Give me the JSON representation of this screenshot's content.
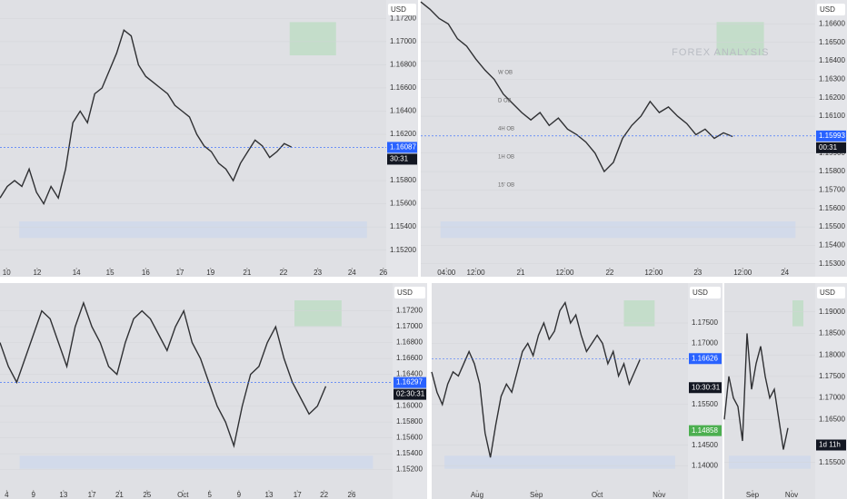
{
  "chart_data": [
    {
      "type": "line",
      "currency": "USD",
      "color": "#2f3033",
      "values": [
        1.1565,
        1.1575,
        1.158,
        1.1575,
        1.159,
        1.157,
        1.156,
        1.1575,
        1.1565,
        1.159,
        1.163,
        1.164,
        1.163,
        1.1655,
        1.166,
        1.1675,
        1.169,
        1.171,
        1.1705,
        1.168,
        1.167,
        1.1665,
        1.166,
        1.1655,
        1.1645,
        1.164,
        1.1635,
        1.162,
        1.161,
        1.1605,
        1.1595,
        1.159,
        1.158,
        1.1595,
        1.1605,
        1.1615,
        1.161,
        1.16,
        1.1605,
        1.1612,
        1.1609
      ],
      "xlim": [
        0,
        53
      ],
      "xticks": [
        {
          "value": 0.9,
          "label": "10"
        },
        {
          "value": 5.1,
          "label": "12"
        },
        {
          "value": 10.5,
          "label": "14"
        },
        {
          "value": 15.1,
          "label": "15"
        },
        {
          "value": 20,
          "label": "16"
        },
        {
          "value": 24.7,
          "label": "17"
        },
        {
          "value": 28.9,
          "label": "19"
        },
        {
          "value": 33.9,
          "label": "21"
        },
        {
          "value": 38.9,
          "label": "22"
        },
        {
          "value": 43.6,
          "label": "23"
        },
        {
          "value": 48.3,
          "label": "24"
        },
        {
          "value": 52.6,
          "label": "26"
        }
      ],
      "ylim": [
        1.1497,
        1.1736
      ],
      "yticks": [
        {
          "value": 1.172,
          "label": "1.17200"
        },
        {
          "value": 1.17,
          "label": "1.17000"
        },
        {
          "value": 1.168,
          "label": "1.16800"
        },
        {
          "value": 1.166,
          "label": "1.16600"
        },
        {
          "value": 1.164,
          "label": "1.16400"
        },
        {
          "value": 1.162,
          "label": "1.16200"
        },
        {
          "value": 1.158,
          "label": "1.15800"
        },
        {
          "value": 1.156,
          "label": "1.15600"
        },
        {
          "value": 1.154,
          "label": "1.15400"
        },
        {
          "value": 1.152,
          "label": "1.15200"
        }
      ],
      "last_price": 1.16087,
      "last_price_color": "#2962ff",
      "countdown": "30:31"
    },
    {
      "type": "line",
      "currency": "USD",
      "color": "#2f3033",
      "values": [
        1.1672,
        1.1668,
        1.1663,
        1.166,
        1.1652,
        1.1648,
        1.1641,
        1.1635,
        1.163,
        1.1622,
        1.1617,
        1.1612,
        1.1608,
        1.1612,
        1.1605,
        1.1609,
        1.1603,
        1.16,
        1.1596,
        1.159,
        1.158,
        1.1585,
        1.1598,
        1.1605,
        1.161,
        1.1618,
        1.1612,
        1.1615,
        1.161,
        1.1606,
        1.16,
        1.1603,
        1.1598,
        1.1601,
        1.1599
      ],
      "xlim": [
        0,
        43
      ],
      "xticks": [
        {
          "value": 2.8,
          "label": "04:00"
        },
        {
          "value": 6,
          "label": "12:00"
        },
        {
          "value": 10.9,
          "label": "21"
        },
        {
          "value": 15.7,
          "label": "12:00"
        },
        {
          "value": 20.6,
          "label": "22"
        },
        {
          "value": 25.4,
          "label": "12:00"
        },
        {
          "value": 30.2,
          "label": "23"
        },
        {
          "value": 35.1,
          "label": "12:00"
        },
        {
          "value": 39.7,
          "label": "24"
        }
      ],
      "ylim": [
        1.1523,
        1.1673
      ],
      "yticks": [
        {
          "value": 1.166,
          "label": "1.16600"
        },
        {
          "value": 1.165,
          "label": "1.16500"
        },
        {
          "value": 1.164,
          "label": "1.16400"
        },
        {
          "value": 1.163,
          "label": "1.16300"
        },
        {
          "value": 1.162,
          "label": "1.16200"
        },
        {
          "value": 1.161,
          "label": "1.16100"
        },
        {
          "value": 1.159,
          "label": "1.15900"
        },
        {
          "value": 1.158,
          "label": "1.15800"
        },
        {
          "value": 1.157,
          "label": "1.15700"
        },
        {
          "value": 1.156,
          "label": "1.15600"
        },
        {
          "value": 1.155,
          "label": "1.15500"
        },
        {
          "value": 1.154,
          "label": "1.15400"
        },
        {
          "value": 1.153,
          "label": "1.15300"
        }
      ],
      "last_price": 1.15993,
      "last_price_color": "#2962ff",
      "countdown": "00:31",
      "watermark": "FOREX ANALYSIS",
      "zone_labels": [
        "W OB",
        "D OB",
        "4H OB",
        "1H OB",
        "15' OB"
      ]
    },
    {
      "type": "line",
      "currency": "USD",
      "color": "#2f3033",
      "values": [
        1.168,
        1.165,
        1.163,
        1.166,
        1.169,
        1.172,
        1.171,
        1.168,
        1.165,
        1.17,
        1.173,
        1.17,
        1.168,
        1.165,
        1.164,
        1.168,
        1.171,
        1.172,
        1.171,
        1.169,
        1.167,
        1.17,
        1.172,
        1.168,
        1.166,
        1.163,
        1.16,
        1.158,
        1.155,
        1.16,
        1.164,
        1.165,
        1.168,
        1.17,
        1.166,
        1.163,
        1.161,
        1.159,
        1.16,
        1.1625
      ],
      "xlim": [
        0,
        47
      ],
      "xticks": [
        {
          "value": 0.8,
          "label": "4"
        },
        {
          "value": 4,
          "label": "9"
        },
        {
          "value": 7.6,
          "label": "13"
        },
        {
          "value": 11,
          "label": "17"
        },
        {
          "value": 14.3,
          "label": "21"
        },
        {
          "value": 17.6,
          "label": "25"
        },
        {
          "value": 21.9,
          "label": "Oct"
        },
        {
          "value": 25.1,
          "label": "5"
        },
        {
          "value": 28.6,
          "label": "9"
        },
        {
          "value": 32.2,
          "label": "13"
        },
        {
          "value": 35.6,
          "label": "17"
        },
        {
          "value": 38.8,
          "label": "22"
        },
        {
          "value": 42.1,
          "label": "26"
        }
      ],
      "ylim": [
        1.1483,
        1.1755
      ],
      "yticks": [
        {
          "value": 1.172,
          "label": "1.17200"
        },
        {
          "value": 1.17,
          "label": "1.17000"
        },
        {
          "value": 1.168,
          "label": "1.16800"
        },
        {
          "value": 1.166,
          "label": "1.16600"
        },
        {
          "value": 1.164,
          "label": "1.16400"
        },
        {
          "value": 1.16,
          "label": "1.16000"
        },
        {
          "value": 1.158,
          "label": "1.15800"
        },
        {
          "value": 1.156,
          "label": "1.15600"
        },
        {
          "value": 1.154,
          "label": "1.15400"
        },
        {
          "value": 1.152,
          "label": "1.15200"
        }
      ],
      "last_price": 1.16297,
      "last_price_color": "#2962ff",
      "countdown": "02:30:31"
    },
    {
      "type": "line",
      "currency": "USD",
      "color": "#2f3033",
      "values": [
        1.163,
        1.158,
        1.155,
        1.16,
        1.163,
        1.162,
        1.165,
        1.168,
        1.165,
        1.16,
        1.148,
        1.142,
        1.15,
        1.157,
        1.16,
        1.158,
        1.163,
        1.168,
        1.17,
        1.167,
        1.172,
        1.175,
        1.171,
        1.173,
        1.178,
        1.18,
        1.175,
        1.177,
        1.172,
        1.168,
        1.17,
        1.172,
        1.17,
        1.165,
        1.168,
        1.162,
        1.165,
        1.16,
        1.163,
        1.166
      ],
      "xlim": [
        0,
        48
      ],
      "xticks": [
        {
          "value": 8.5,
          "label": "Aug"
        },
        {
          "value": 19.6,
          "label": "Sep"
        },
        {
          "value": 31,
          "label": "Oct"
        },
        {
          "value": 42.6,
          "label": "Nov"
        }
      ],
      "ylim": [
        1.1318,
        1.1848
      ],
      "yticks": [
        {
          "value": 1.175,
          "label": "1.17500"
        },
        {
          "value": 1.17,
          "label": "1.17000"
        },
        {
          "value": 1.155,
          "label": "1.15500"
        },
        {
          "value": 1.145,
          "label": "1.14500"
        },
        {
          "value": 1.14,
          "label": "1.14000"
        }
      ],
      "last_price": 1.16626,
      "last_price_color": "#2962ff",
      "countdown": "10:30:31",
      "marker_price": 1.14858,
      "marker_color": "#4caf50"
    },
    {
      "type": "line",
      "currency": "USD",
      "color": "#2f3033",
      "values": [
        1.165,
        1.175,
        1.17,
        1.168,
        1.16,
        1.185,
        1.172,
        1.178,
        1.182,
        1.175,
        1.17,
        1.172,
        1.165,
        1.158,
        1.163
      ],
      "xlim": [
        0,
        20
      ],
      "xticks": [
        {
          "value": 6.2,
          "label": "Sep"
        },
        {
          "value": 14.8,
          "label": "Nov"
        }
      ],
      "ylim": [
        1.1465,
        1.1967
      ],
      "yticks": [
        {
          "value": 1.19,
          "label": "1.19000"
        },
        {
          "value": 1.185,
          "label": "1.18500"
        },
        {
          "value": 1.18,
          "label": "1.18000"
        },
        {
          "value": 1.175,
          "label": "1.17500"
        },
        {
          "value": 1.17,
          "label": "1.17000"
        },
        {
          "value": 1.165,
          "label": "1.16500"
        },
        {
          "value": 1.155,
          "label": "1.15500"
        }
      ],
      "countdown": "1d 11h"
    }
  ]
}
